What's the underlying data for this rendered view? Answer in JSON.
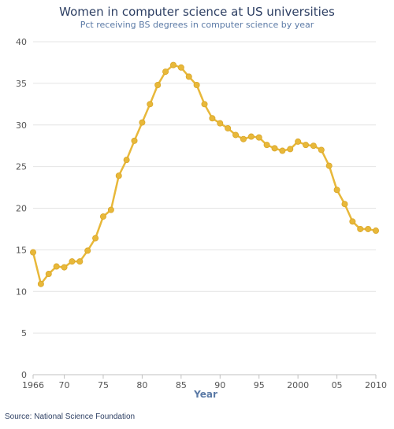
{
  "title": "Women in computer science at US universities",
  "subtitle": "Pct receiving BS degrees in computer science by year",
  "source": "Source: National Science Foundation",
  "colors": {
    "series": "#e8b83a",
    "series_stroke": "#d9a628",
    "grid": "#e4e4e4",
    "axis": "#c0c0c0"
  },
  "chart_data": {
    "type": "line",
    "title": "Women in computer science at US universities",
    "subtitle": "Pct receiving BS degrees in computer science by year",
    "xlabel": "Year",
    "ylabel": "",
    "xlim": [
      1966,
      2010
    ],
    "ylim": [
      0,
      40
    ],
    "grid": true,
    "legend": "none",
    "y_ticks": [
      0,
      5,
      10,
      15,
      20,
      25,
      30,
      35,
      40
    ],
    "x_ticks": [
      {
        "value": 1966,
        "label": "1966"
      },
      {
        "value": 1970,
        "label": "70"
      },
      {
        "value": 1975,
        "label": "75"
      },
      {
        "value": 1980,
        "label": "80"
      },
      {
        "value": 1985,
        "label": "85"
      },
      {
        "value": 1990,
        "label": "90"
      },
      {
        "value": 1995,
        "label": "95"
      },
      {
        "value": 2000,
        "label": "2000"
      },
      {
        "value": 2005,
        "label": "05"
      },
      {
        "value": 2010,
        "label": "2010"
      }
    ],
    "x": [
      1966,
      1967,
      1968,
      1969,
      1970,
      1971,
      1972,
      1973,
      1974,
      1975,
      1976,
      1977,
      1978,
      1979,
      1980,
      1981,
      1982,
      1983,
      1984,
      1985,
      1986,
      1987,
      1988,
      1989,
      1990,
      1991,
      1992,
      1993,
      1994,
      1995,
      1996,
      1997,
      1998,
      1999,
      2000,
      2001,
      2002,
      2003,
      2004,
      2005,
      2006,
      2007,
      2008,
      2009,
      2010
    ],
    "series": [
      {
        "values": [
          14.7,
          10.9,
          12.1,
          13.0,
          12.9,
          13.6,
          13.6,
          14.9,
          16.4,
          19.0,
          19.8,
          23.9,
          25.8,
          28.1,
          30.3,
          32.5,
          34.8,
          36.4,
          37.2,
          36.9,
          35.8,
          34.8,
          32.5,
          30.8,
          30.2,
          29.6,
          28.8,
          28.3,
          28.6,
          28.5,
          27.6,
          27.2,
          26.9,
          27.1,
          28.0,
          27.6,
          27.5,
          27.0,
          25.1,
          22.2,
          20.5,
          18.4,
          17.5,
          17.5,
          17.3
        ]
      }
    ]
  }
}
